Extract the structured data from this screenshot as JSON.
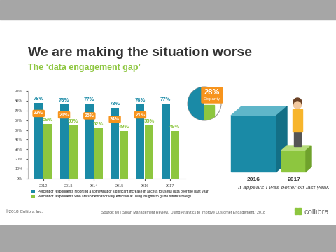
{
  "slide": {
    "title": "We are making the situation worse",
    "subtitle": "The ‘data engagement gap’",
    "source": "Source: MIT Sloan Management Review, ‘Using Analytics to Improve Customer Engagement,’ 2018",
    "footer": "©2018 Collibra Inc.",
    "logo": "collibra"
  },
  "chart_data": {
    "type": "bar",
    "categories": [
      "2012",
      "2013",
      "2014",
      "2015",
      "2016",
      "2017"
    ],
    "series": [
      {
        "name": "Percent of respondents reporting a somewhat or significant increase in access to useful data over the past year",
        "color": "#1a8aa6",
        "values": [
          78,
          76,
          77,
          73,
          76,
          77
        ],
        "value_labels": [
          "78%",
          "76%",
          "77%",
          "73%",
          "76%",
          "77%"
        ]
      },
      {
        "name": "Percent of respondents who are somewhat or very effective at using insights to guide future strategy",
        "color": "#8dc63f",
        "values": [
          56,
          55,
          52,
          49,
          55,
          49
        ],
        "value_labels": [
          "56%",
          "55%",
          "52%",
          "49%",
          "55%",
          "49%"
        ]
      }
    ],
    "gaps": {
      "color": "#f7941d",
      "values": [
        22,
        21,
        25,
        24,
        21
      ],
      "value_labels": [
        "22%",
        "21%",
        "25%",
        "24%",
        "21%"
      ]
    },
    "ylim": [
      0,
      90
    ],
    "yticks": [
      {
        "value": 0,
        "label": "0%"
      },
      {
        "value": 10,
        "label": "10%"
      },
      {
        "value": 20,
        "label": "20%"
      },
      {
        "value": 30,
        "label": "30%"
      },
      {
        "value": 40,
        "label": "40%"
      },
      {
        "value": 50,
        "label": "50%"
      },
      {
        "value": 60,
        "label": "60%"
      },
      {
        "value": 70,
        "label": "70%"
      },
      {
        "value": 80,
        "label": "80%"
      },
      {
        "value": 90,
        "label": "90%"
      }
    ],
    "data_labels": true,
    "grid": false,
    "legend": "bottom"
  },
  "callout": {
    "label": "28%",
    "text": "Disparity"
  },
  "illustration": {
    "labels": [
      "2016",
      "2017"
    ],
    "caption": "It appears I was better off last year."
  }
}
